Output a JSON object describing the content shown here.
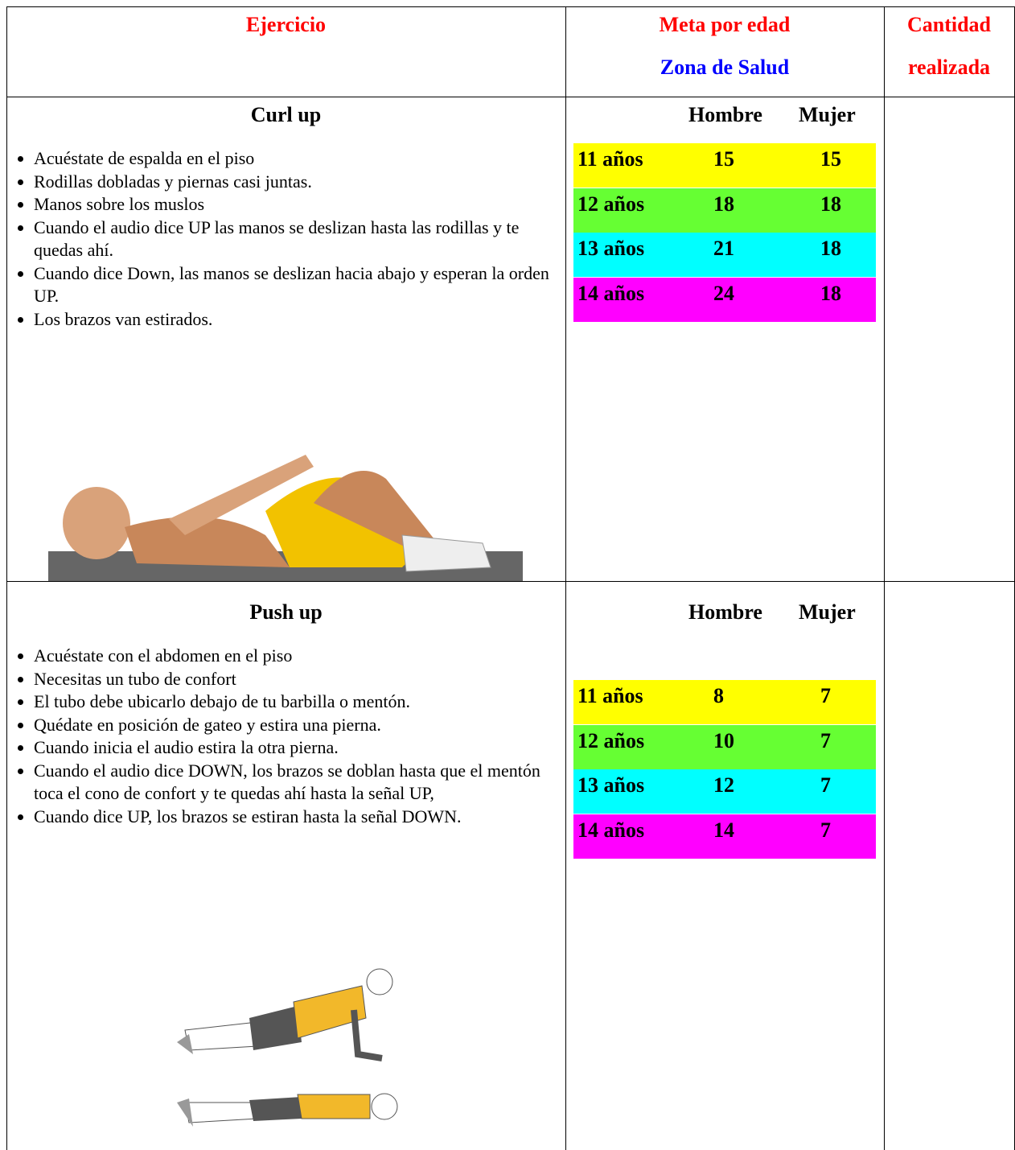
{
  "header": {
    "exercise": "Ejercicio",
    "goal_title": "Meta por edad",
    "goal_subtitle": "Zona de Salud",
    "amount": [
      "Cantidad",
      "realizada"
    ]
  },
  "exercises": [
    {
      "name": "Curl up",
      "instructions": [
        "Acuéstate de espalda en el piso",
        "Rodillas dobladas y piernas casi juntas.",
        "Manos sobre los muslos",
        "Cuando el audio dice UP las manos se deslizan hasta las rodillas y te quedas ahí.",
        "Cuando dice Down, las manos se deslizan hacia abajo y esperan la orden UP.",
        "Los brazos van estirados."
      ],
      "goal_header": [
        "Hombre",
        "Mujer"
      ],
      "goals": [
        {
          "age": "11 años",
          "male": 15,
          "female": 15,
          "color": "#ffff00"
        },
        {
          "age": "12 años",
          "male": 18,
          "female": 18,
          "color": "#66ff33"
        },
        {
          "age": "13 años",
          "male": 21,
          "female": 18,
          "color": "#00ffff"
        },
        {
          "age": "14 años",
          "male": 24,
          "female": 18,
          "color": "#ff00ff"
        }
      ]
    },
    {
      "name": "Push up",
      "instructions": [
        "Acuéstate con el abdomen en el piso",
        "Necesitas un tubo de confort",
        "El tubo debe ubicarlo debajo de tu barbilla o mentón.",
        "Quédate en posición de gateo y estira una pierna.",
        "Cuando inicia el audio estira la otra pierna.",
        "Cuando el audio dice DOWN, los brazos se doblan hasta que el mentón toca el cono de confort y te quedas ahí hasta la señal UP,",
        "Cuando dice UP, los brazos se estiran hasta la señal DOWN."
      ],
      "goal_header": [
        "Hombre",
        "Mujer"
      ],
      "goals": [
        {
          "age": "11 años",
          "male": 8,
          "female": 7,
          "color": "#ffff00"
        },
        {
          "age": "12 años",
          "male": 10,
          "female": 7,
          "color": "#66ff33"
        },
        {
          "age": "13 años",
          "male": 12,
          "female": 7,
          "color": "#00ffff"
        },
        {
          "age": "14 años",
          "male": 14,
          "female": 7,
          "color": "#ff00ff"
        }
      ]
    }
  ]
}
